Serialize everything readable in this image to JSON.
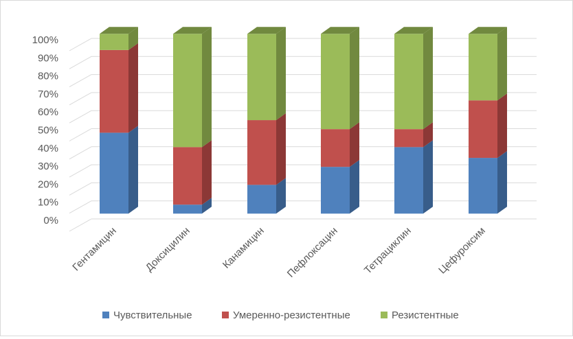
{
  "chart_data": {
    "type": "bar",
    "subtype": "stacked-100-3d",
    "title": "",
    "xlabel": "",
    "ylabel": "",
    "ylim": [
      0,
      100
    ],
    "yticks": [
      "0%",
      "10%",
      "20%",
      "30%",
      "40%",
      "50%",
      "60%",
      "70%",
      "80%",
      "90%",
      "100%"
    ],
    "grid": true,
    "legend_position": "bottom",
    "categories": [
      "Гентамицин",
      "Доксицилин",
      "Канамицин",
      "Пефлоксацин",
      "Тетрациклин",
      "Цефуроксим"
    ],
    "series": [
      {
        "name": "Чувствительные",
        "color": "#4f81bd",
        "side": "#385d8a",
        "values": [
          45,
          5,
          16,
          26,
          37,
          31
        ]
      },
      {
        "name": "Умеренно-резистентные",
        "color": "#c0504d",
        "side": "#8c3836",
        "values": [
          46,
          32,
          36,
          21,
          10,
          32
        ]
      },
      {
        "name": "Резистентные",
        "color": "#9bbb59",
        "side": "#71893f",
        "values": [
          9,
          63,
          48,
          53,
          53,
          37
        ]
      }
    ]
  }
}
